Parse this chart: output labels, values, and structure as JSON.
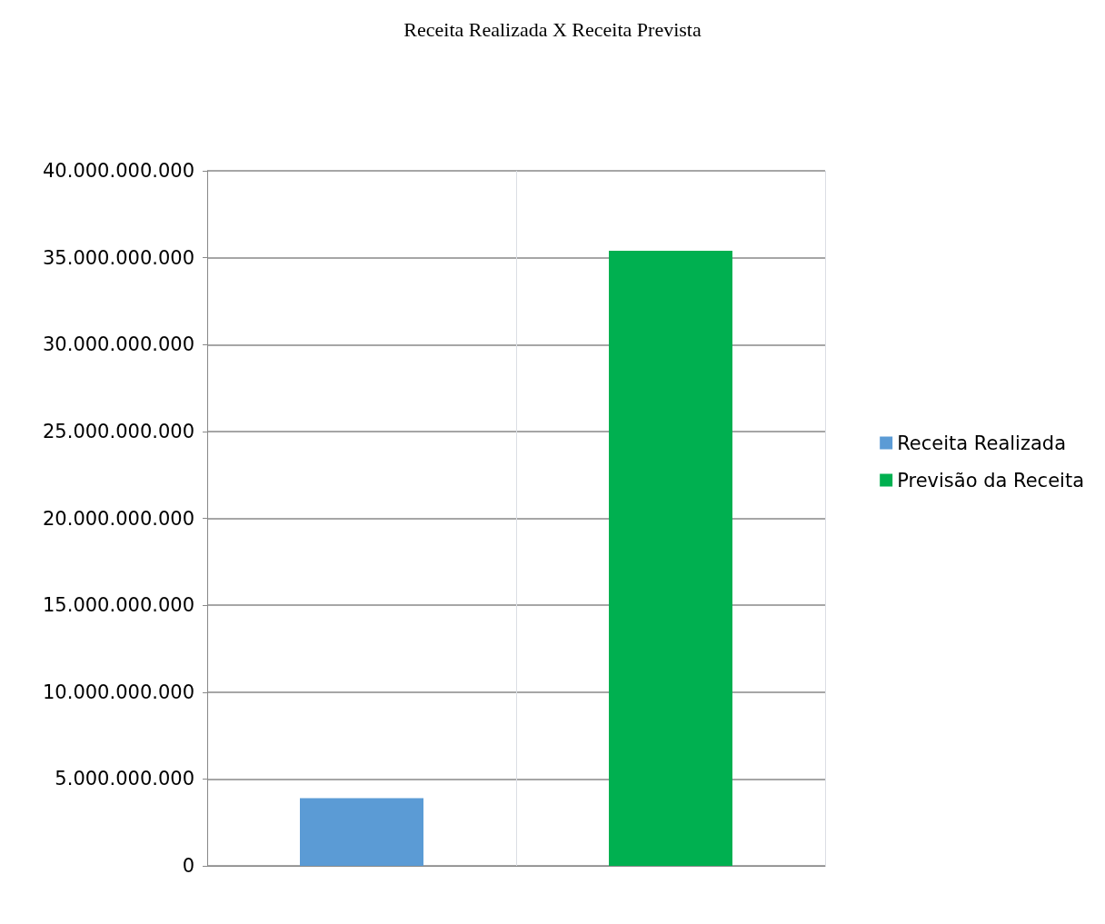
{
  "chart_data": {
    "type": "bar",
    "title": "Receita Realizada X Receita Prevista",
    "categories": [
      null,
      null
    ],
    "series": [
      {
        "name": "Receita Realizada",
        "color": "#5b9bd5",
        "values": [
          3900000000,
          null
        ]
      },
      {
        "name": "Previsão da Receita",
        "color": "#00b050",
        "values": [
          null,
          35400000000
        ]
      }
    ],
    "ylim": [
      0,
      40000000000
    ],
    "yticks": [
      {
        "value": 0,
        "label": "0"
      },
      {
        "value": 5000000000,
        "label": "5.000.000.000"
      },
      {
        "value": 10000000000,
        "label": "10.000.000.000"
      },
      {
        "value": 15000000000,
        "label": "15.000.000.000"
      },
      {
        "value": 20000000000,
        "label": "20.000.000.000"
      },
      {
        "value": 25000000000,
        "label": "25.000.000.000"
      },
      {
        "value": 30000000000,
        "label": "30.000.000.000"
      },
      {
        "value": 35000000000,
        "label": "35.000.000.000"
      },
      {
        "value": 40000000000,
        "label": "40.000.000.000"
      }
    ],
    "grid": true,
    "legend": "right"
  }
}
